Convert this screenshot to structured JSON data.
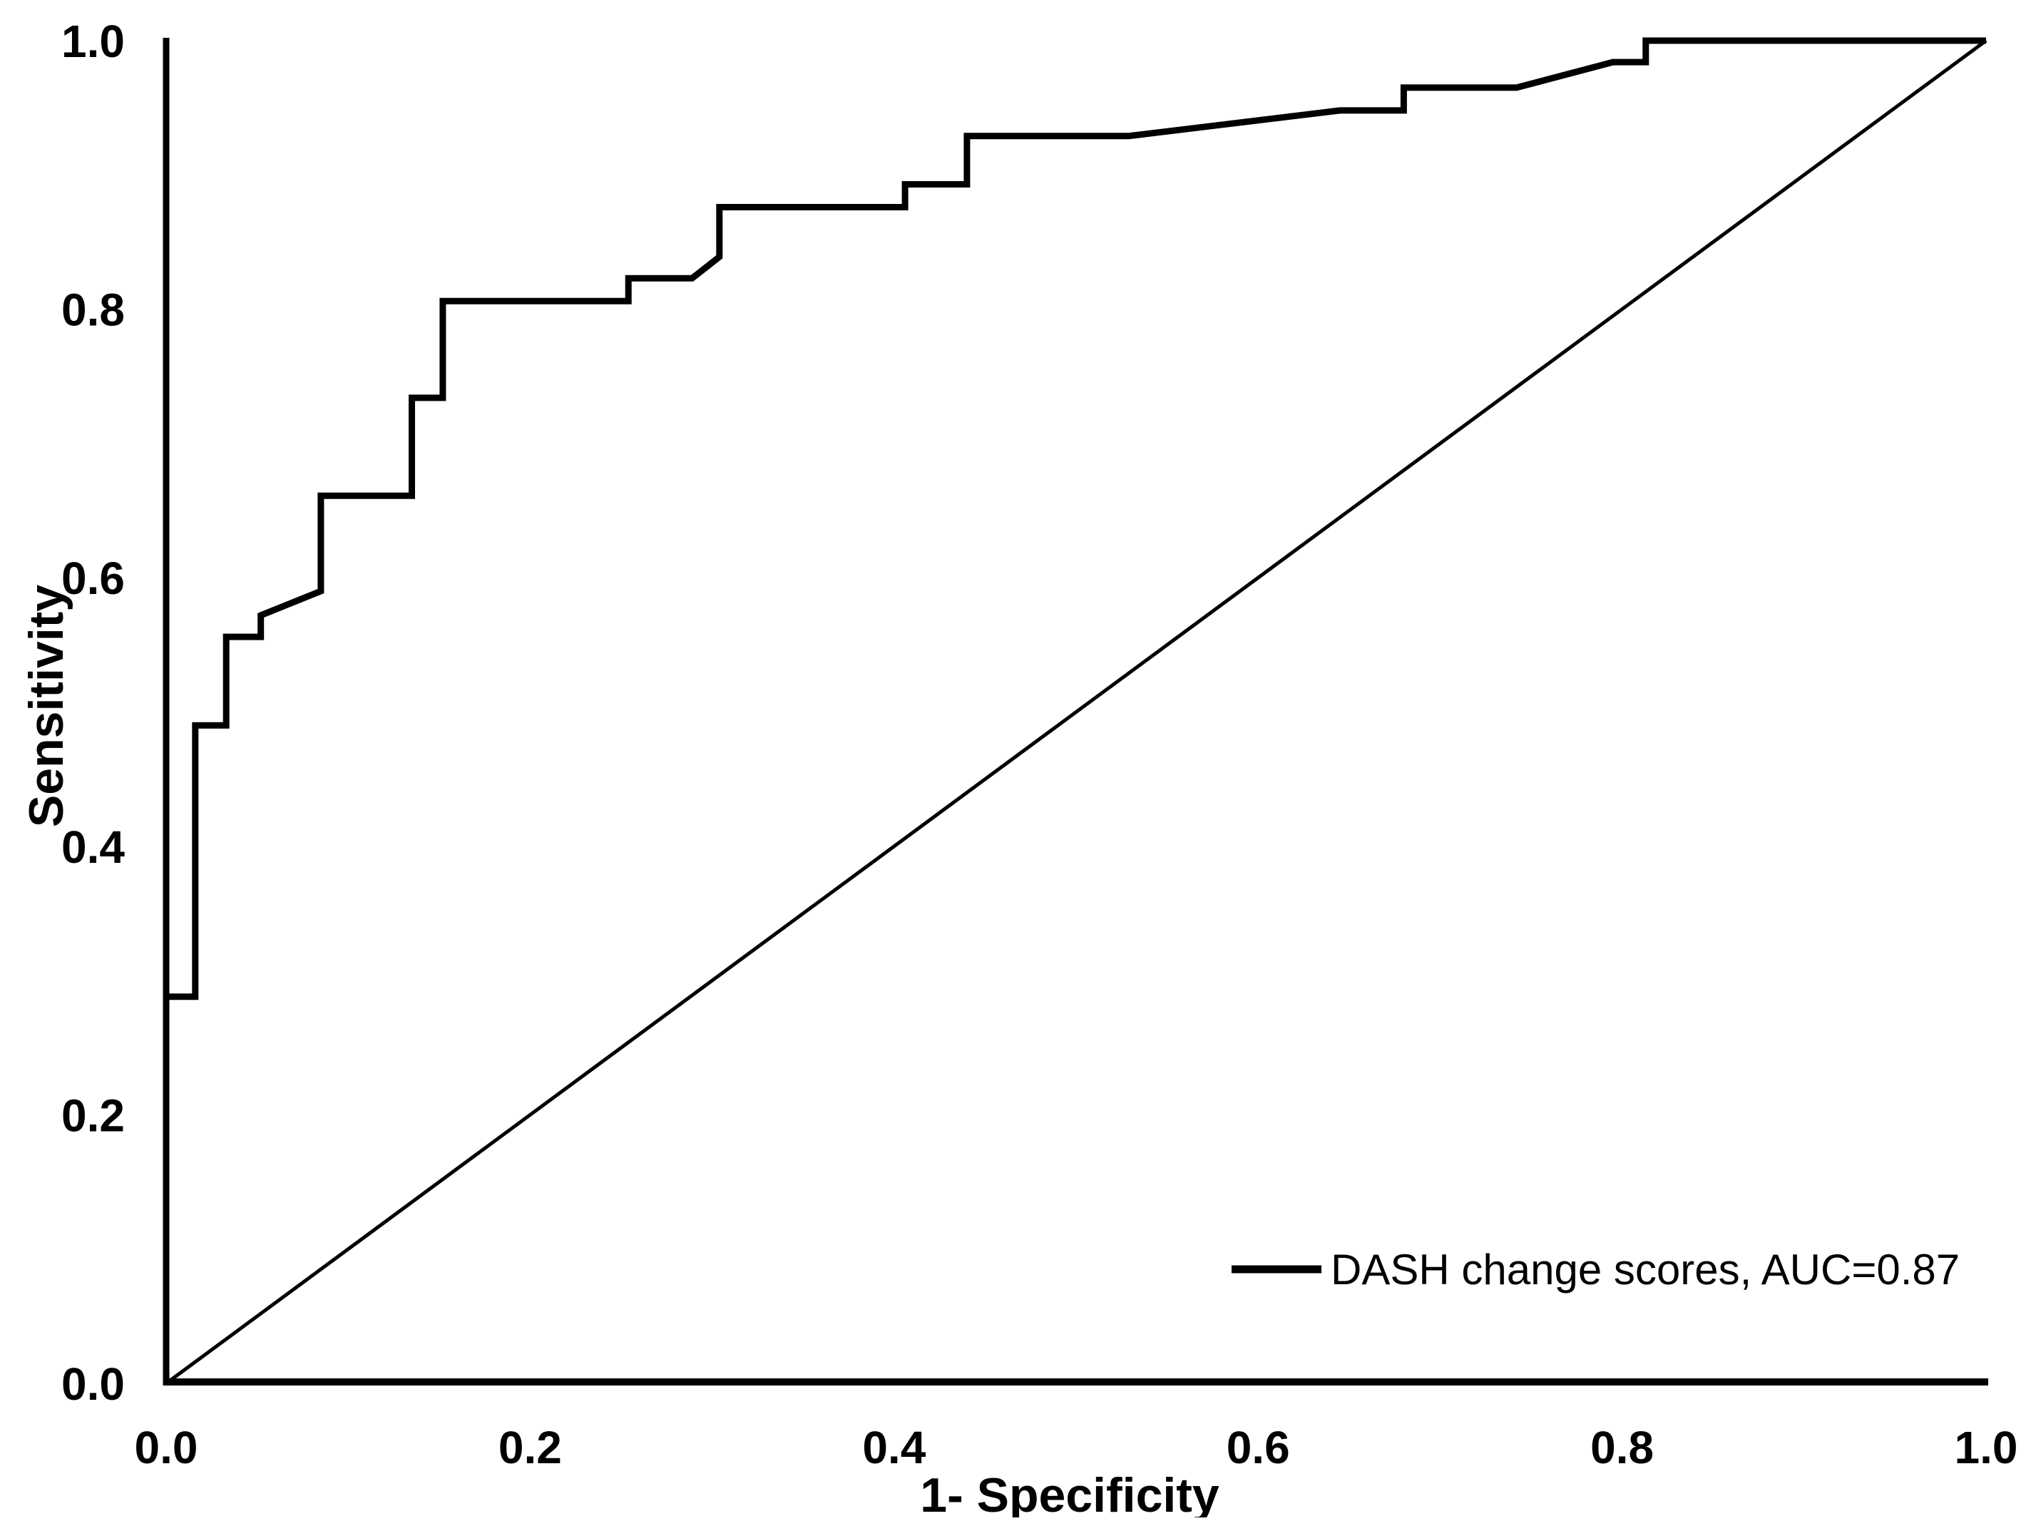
{
  "figure": {
    "background_color": "#ffffff",
    "line_color": "#000000"
  },
  "chart_data": {
    "type": "line",
    "subtype": "roc-curve",
    "title": "",
    "xlabel": "1- Specificity",
    "ylabel": "Sensitivity",
    "xlim": [
      0.0,
      1.0
    ],
    "ylim": [
      0.0,
      1.0
    ],
    "grid": false,
    "x_ticks": [
      "0.0",
      "0.2",
      "0.4",
      "0.6",
      "0.8",
      "1.0"
    ],
    "y_ticks": [
      "0.0",
      "0.2",
      "0.4",
      "0.6",
      "0.8",
      "1.0"
    ],
    "legend": {
      "position": "lower-right",
      "entries": [
        {
          "label": "DASH change scores, AUC=0.87",
          "color": "#000000",
          "line_width": "thick"
        }
      ]
    },
    "series": [
      {
        "name": "DASH change scores",
        "auc": 0.87,
        "style": "thick-solid",
        "points": [
          [
            0.0,
            0.0
          ],
          [
            0.0,
            0.288
          ],
          [
            0.016,
            0.288
          ],
          [
            0.016,
            0.49
          ],
          [
            0.033,
            0.49
          ],
          [
            0.033,
            0.556
          ],
          [
            0.052,
            0.556
          ],
          [
            0.052,
            0.572
          ],
          [
            0.085,
            0.59
          ],
          [
            0.085,
            0.661
          ],
          [
            0.135,
            0.661
          ],
          [
            0.135,
            0.734
          ],
          [
            0.152,
            0.734
          ],
          [
            0.152,
            0.806
          ],
          [
            0.254,
            0.806
          ],
          [
            0.254,
            0.823
          ],
          [
            0.289,
            0.823
          ],
          [
            0.304,
            0.839
          ],
          [
            0.304,
            0.876
          ],
          [
            0.406,
            0.876
          ],
          [
            0.406,
            0.893
          ],
          [
            0.44,
            0.893
          ],
          [
            0.44,
            0.929
          ],
          [
            0.529,
            0.929
          ],
          [
            0.645,
            0.948
          ],
          [
            0.68,
            0.948
          ],
          [
            0.68,
            0.965
          ],
          [
            0.742,
            0.965
          ],
          [
            0.795,
            0.984
          ],
          [
            0.813,
            0.984
          ],
          [
            0.813,
            1.0
          ],
          [
            1.0,
            1.0
          ]
        ]
      },
      {
        "name": "reference diagonal",
        "style": "thin-solid",
        "points": [
          [
            0.0,
            0.0
          ],
          [
            1.0,
            1.0
          ]
        ]
      }
    ]
  }
}
